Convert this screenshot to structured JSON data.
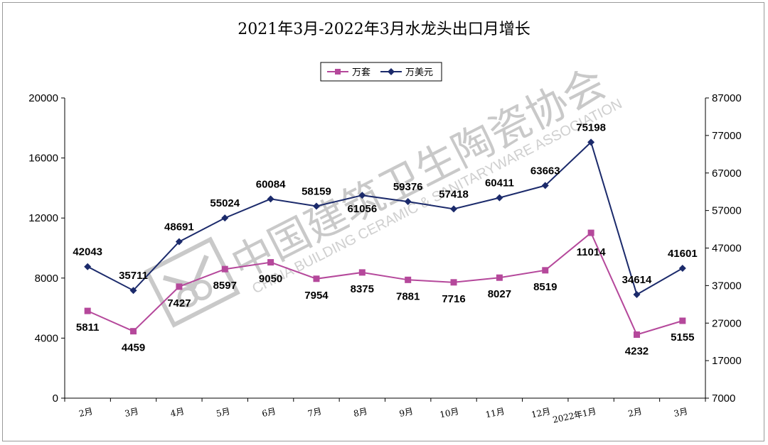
{
  "chart_data": {
    "type": "line",
    "title": "2021年3月-2022年3月水龙头出口月增长",
    "categories": [
      "2月",
      "3月",
      "4月",
      "5月",
      "6月",
      "7月",
      "8月",
      "9月",
      "10月",
      "11月",
      "12月",
      "2022年1月",
      "2月",
      "3月"
    ],
    "series": [
      {
        "name": "万套",
        "axis": "left",
        "color": "#b5489b",
        "marker": "square",
        "values": [
          5811,
          4459,
          7427,
          8597,
          9050,
          7954,
          8375,
          7881,
          7716,
          8027,
          8519,
          11014,
          4232,
          5155
        ],
        "labels": [
          "5811",
          "4459",
          "7427",
          "8597",
          "9050",
          "7954",
          "8375",
          "7881",
          "7716",
          "8027",
          "8519",
          "11014",
          "4232",
          "5155"
        ]
      },
      {
        "name": "万美元",
        "axis": "right",
        "color": "#1b2a6b",
        "marker": "diamond",
        "values": [
          42043,
          35711,
          48691,
          55024,
          60084,
          58159,
          61056,
          59376,
          57418,
          60411,
          63663,
          75198,
          34614,
          41601
        ],
        "labels": [
          "42043",
          "35711",
          "48691",
          "55024",
          "60084",
          "58159",
          "61056",
          "59376",
          "57418",
          "60411",
          "63663",
          "75198",
          "34614",
          "41601"
        ]
      }
    ],
    "y_left": {
      "ylim": [
        0,
        20000
      ],
      "ticks": [
        "0",
        "4000",
        "8000",
        "12000",
        "16000",
        "20000"
      ]
    },
    "y_right": {
      "ylim": [
        7000,
        87000
      ],
      "ticks": [
        "7000",
        "17000",
        "27000",
        "37000",
        "47000",
        "57000",
        "67000",
        "77000",
        "87000"
      ]
    },
    "legend_position": "top-center",
    "grid": false
  },
  "watermark": {
    "text_cn": "中国建筑卫生陶瓷协会",
    "text_en": "CHINA BUILDING CERAMIC & SANITARYWARE ASSOCIATION"
  }
}
